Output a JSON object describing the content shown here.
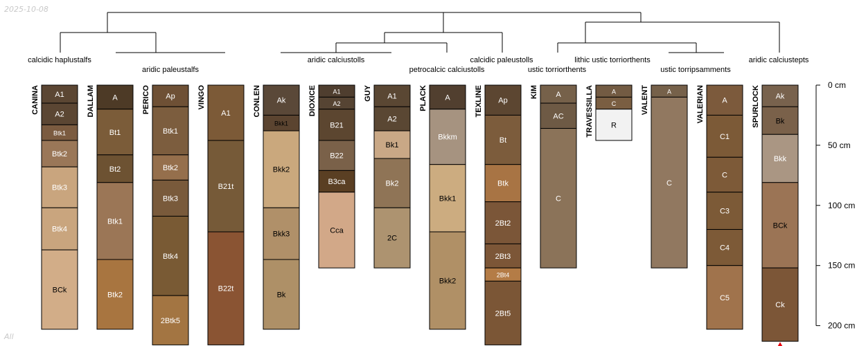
{
  "date_stamp": "2025-10-08",
  "footer_tag": "All",
  "depth_unit": "cm",
  "depth_ticks": [
    0,
    50,
    100,
    150,
    200
  ],
  "taxa": [
    {
      "id": "t1",
      "label": "calcidic haplustalfs"
    },
    {
      "id": "t2",
      "label": "aridic paleustalfs"
    },
    {
      "id": "t3",
      "label": "aridic calciustolls"
    },
    {
      "id": "t4",
      "label": "petrocalcic calciustolls"
    },
    {
      "id": "t5",
      "label": "calcidic paleustolls"
    },
    {
      "id": "t6",
      "label": "ustic torriorthents"
    },
    {
      "id": "t7",
      "label": "lithic ustic torriorthents"
    },
    {
      "id": "t8",
      "label": "ustic torripsamments"
    },
    {
      "id": "t9",
      "label": "aridic calciustepts"
    }
  ],
  "profiles": [
    {
      "name": "CANINA",
      "max_depth": 203,
      "horizons": [
        {
          "name": "A1",
          "top": 0,
          "bottom": 15,
          "color": "#5b4633"
        },
        {
          "name": "A2",
          "top": 15,
          "bottom": 33,
          "color": "#5b4633"
        },
        {
          "name": "Btk1",
          "top": 33,
          "bottom": 46,
          "color": "#7b5b40"
        },
        {
          "name": "Btk2",
          "top": 46,
          "bottom": 68,
          "color": "#9a7758"
        },
        {
          "name": "Btk3",
          "top": 68,
          "bottom": 102,
          "color": "#c9a57e"
        },
        {
          "name": "Btk4",
          "top": 102,
          "bottom": 137,
          "color": "#c9a57e"
        },
        {
          "name": "BCk",
          "top": 137,
          "bottom": 203,
          "color": "#d2ad88"
        }
      ]
    },
    {
      "name": "DALLAM",
      "max_depth": 203,
      "horizons": [
        {
          "name": "A",
          "top": 0,
          "bottom": 20,
          "color": "#4d3a26"
        },
        {
          "name": "Bt1",
          "top": 20,
          "bottom": 58,
          "color": "#7b5c39"
        },
        {
          "name": "Bt2",
          "top": 58,
          "bottom": 81,
          "color": "#6d5232"
        },
        {
          "name": "Btk1",
          "top": 81,
          "bottom": 145,
          "color": "#9b7656"
        },
        {
          "name": "Btk2",
          "top": 145,
          "bottom": 203,
          "color": "#a87540"
        }
      ]
    },
    {
      "name": "PERICO",
      "max_depth": 216,
      "horizons": [
        {
          "name": "Ap",
          "top": 0,
          "bottom": 18,
          "color": "#6e5035"
        },
        {
          "name": "Btk1",
          "top": 18,
          "bottom": 58,
          "color": "#7c5d3e"
        },
        {
          "name": "Btk2",
          "top": 58,
          "bottom": 79,
          "color": "#956f4c"
        },
        {
          "name": "Btk3",
          "top": 79,
          "bottom": 109,
          "color": "#795a3b"
        },
        {
          "name": "Btk4",
          "top": 109,
          "bottom": 175,
          "color": "#795a34"
        },
        {
          "name": "2Btk5",
          "top": 175,
          "bottom": 216,
          "color": "#a37542"
        }
      ]
    },
    {
      "name": "VINGO",
      "max_depth": 216,
      "horizons": [
        {
          "name": "A1",
          "top": 0,
          "bottom": 46,
          "color": "#7c5a37"
        },
        {
          "name": "B21t",
          "top": 46,
          "bottom": 122,
          "color": "#765a38"
        },
        {
          "name": "B22t",
          "top": 122,
          "bottom": 216,
          "color": "#8a5433"
        }
      ]
    },
    {
      "name": "CONLEN",
      "max_depth": 203,
      "horizons": [
        {
          "name": "Ak",
          "top": 0,
          "bottom": 25,
          "color": "#5a4838"
        },
        {
          "name": "Bkk1",
          "top": 25,
          "bottom": 38,
          "color": "#5b4430"
        },
        {
          "name": "Bkk2",
          "top": 38,
          "bottom": 102,
          "color": "#caa87d"
        },
        {
          "name": "Bkk3",
          "top": 102,
          "bottom": 145,
          "color": "#b09069"
        },
        {
          "name": "Bk",
          "top": 145,
          "bottom": 203,
          "color": "#ae9067"
        }
      ]
    },
    {
      "name": "DIOXICE",
      "max_depth": 152,
      "horizons": [
        {
          "name": "A1",
          "top": 0,
          "bottom": 10,
          "color": "#4f3e2f"
        },
        {
          "name": "A2",
          "top": 10,
          "bottom": 20,
          "color": "#564433"
        },
        {
          "name": "B21",
          "top": 20,
          "bottom": 46,
          "color": "#5c4630"
        },
        {
          "name": "B22",
          "top": 46,
          "bottom": 71,
          "color": "#7a6149"
        },
        {
          "name": "B3ca",
          "top": 71,
          "bottom": 89,
          "color": "#5a3f23"
        },
        {
          "name": "Cca",
          "top": 89,
          "bottom": 152,
          "color": "#d2a888"
        }
      ]
    },
    {
      "name": "GUY",
      "max_depth": 152,
      "horizons": [
        {
          "name": "A1",
          "top": 0,
          "bottom": 18,
          "color": "#5a4733"
        },
        {
          "name": "A2",
          "top": 18,
          "bottom": 38,
          "color": "#5a4733"
        },
        {
          "name": "Bk1",
          "top": 38,
          "bottom": 61,
          "color": "#c9a886"
        },
        {
          "name": "Bk2",
          "top": 61,
          "bottom": 102,
          "color": "#8f7456"
        },
        {
          "name": "2C",
          "top": 102,
          "bottom": 152,
          "color": "#ad9370"
        }
      ]
    },
    {
      "name": "PLACK",
      "max_depth": 203,
      "horizons": [
        {
          "name": "A",
          "top": 0,
          "bottom": 20,
          "color": "#513f2f"
        },
        {
          "name": "Bkkm",
          "top": 20,
          "bottom": 66,
          "color": "#a69380"
        },
        {
          "name": "Bkk1",
          "top": 66,
          "bottom": 122,
          "color": "#ccac80"
        },
        {
          "name": "Bkk2",
          "top": 122,
          "bottom": 203,
          "color": "#b09066"
        }
      ]
    },
    {
      "name": "TEXLINE",
      "max_depth": 216,
      "horizons": [
        {
          "name": "Ap",
          "top": 0,
          "bottom": 25,
          "color": "#5c4631"
        },
        {
          "name": "Bt",
          "top": 25,
          "bottom": 66,
          "color": "#7c5c3c"
        },
        {
          "name": "Btk",
          "top": 66,
          "bottom": 97,
          "color": "#a87444"
        },
        {
          "name": "2Bt2",
          "top": 97,
          "bottom": 132,
          "color": "#7b5638"
        },
        {
          "name": "2Bt3",
          "top": 132,
          "bottom": 152,
          "color": "#7c5637"
        },
        {
          "name": "2Bt4",
          "top": 152,
          "bottom": 163,
          "color": "#b47c46"
        },
        {
          "name": "2Bt5",
          "top": 163,
          "bottom": 216,
          "color": "#7b5636"
        }
      ]
    },
    {
      "name": "KIM",
      "max_depth": 152,
      "horizons": [
        {
          "name": "A",
          "top": 0,
          "bottom": 15,
          "color": "#76614a"
        },
        {
          "name": "AC",
          "top": 15,
          "bottom": 36,
          "color": "#6e5a45"
        },
        {
          "name": "C",
          "top": 36,
          "bottom": 152,
          "color": "#8b7359"
        }
      ]
    },
    {
      "name": "TRAVESSILLA",
      "max_depth": 46,
      "horizons": [
        {
          "name": "A",
          "top": 0,
          "bottom": 10,
          "color": "#735b43"
        },
        {
          "name": "C",
          "top": 10,
          "bottom": 20,
          "color": "#7a5e42"
        },
        {
          "name": "R",
          "top": 20,
          "bottom": 46,
          "color": "#f2f2f2"
        }
      ]
    },
    {
      "name": "VALENT",
      "max_depth": 152,
      "horizons": [
        {
          "name": "A",
          "top": 0,
          "bottom": 10,
          "color": "#76614a"
        },
        {
          "name": "C",
          "top": 10,
          "bottom": 152,
          "color": "#917860"
        }
      ]
    },
    {
      "name": "VALERIAN",
      "max_depth": 203,
      "horizons": [
        {
          "name": "A",
          "top": 0,
          "bottom": 25,
          "color": "#7c5a3c"
        },
        {
          "name": "C1",
          "top": 25,
          "bottom": 60,
          "color": "#7c5a37"
        },
        {
          "name": "C",
          "top": 60,
          "bottom": 89,
          "color": "#7d5a38"
        },
        {
          "name": "C3",
          "top": 89,
          "bottom": 120,
          "color": "#7c5a37"
        },
        {
          "name": "C4",
          "top": 120,
          "bottom": 150,
          "color": "#7d5a37"
        },
        {
          "name": "C5",
          "top": 150,
          "bottom": 203,
          "color": "#a0734c"
        }
      ]
    },
    {
      "name": "SPURLOCK",
      "max_depth": 213,
      "horizons": [
        {
          "name": "Ak",
          "top": 0,
          "bottom": 18,
          "color": "#78624d"
        },
        {
          "name": "Bk",
          "top": 18,
          "bottom": 41,
          "color": "#7a614a"
        },
        {
          "name": "Bkk",
          "top": 41,
          "bottom": 81,
          "color": "#aa9683"
        },
        {
          "name": "BCk",
          "top": 81,
          "bottom": 152,
          "color": "#9b7455"
        },
        {
          "name": "Ck",
          "top": 152,
          "bottom": 213,
          "color": "#7c5637"
        }
      ]
    }
  ],
  "colors": {
    "line": "#000000",
    "label_light": "#ffffff",
    "label_dark": "#000000",
    "marker": "#e8000b"
  }
}
